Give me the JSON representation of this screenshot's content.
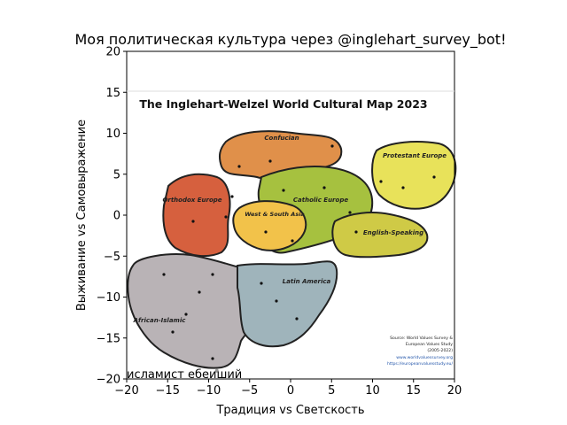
{
  "chart_data": {
    "type": "scatter",
    "title": "Моя политическая культура через @inglehart_survey_bot!",
    "xlabel": "Традиция vs Светскость",
    "ylabel": "Выживание vs Самовыражение",
    "xlim": [
      -20,
      20
    ],
    "ylim": [
      -20,
      20
    ],
    "xticks": [
      "−20",
      "−15",
      "−10",
      "−5",
      "0",
      "5",
      "10",
      "15",
      "20"
    ],
    "yticks": [
      "−20",
      "−15",
      "−10",
      "−5",
      "0",
      "5",
      "10",
      "15",
      "20"
    ],
    "grid": false,
    "background_image": {
      "title": "The Inglehart-Welzel World Cultural Map 2023",
      "regions": [
        {
          "name": "Confucian",
          "color": "#e0904a"
        },
        {
          "name": "Orthodox Europe",
          "color": "#d6603e"
        },
        {
          "name": "West & South Asia",
          "color": "#f2c24a"
        },
        {
          "name": "Catholic Europe",
          "color": "#a6c13f"
        },
        {
          "name": "Protestant Europe",
          "color": "#e8e25a"
        },
        {
          "name": "English-Speaking",
          "color": "#cfca46"
        },
        {
          "name": "Latin America",
          "color": "#9fb4bb"
        },
        {
          "name": "African-Islamic",
          "color": "#b9b3b6"
        }
      ],
      "source": [
        "Source: World Values Survey &",
        "European Values Study",
        "(2005-2022)",
        "www.worldvaluessurvey.org",
        "https://europeanvaluesstudy.eu/"
      ]
    },
    "series": [
      {
        "name": "исламист ебеиший",
        "points": [
          {
            "x": -9,
            "y": -19
          }
        ]
      }
    ],
    "annotations": [
      {
        "text": "исламист ебеиший",
        "x": -20,
        "y": -19.6
      }
    ]
  }
}
